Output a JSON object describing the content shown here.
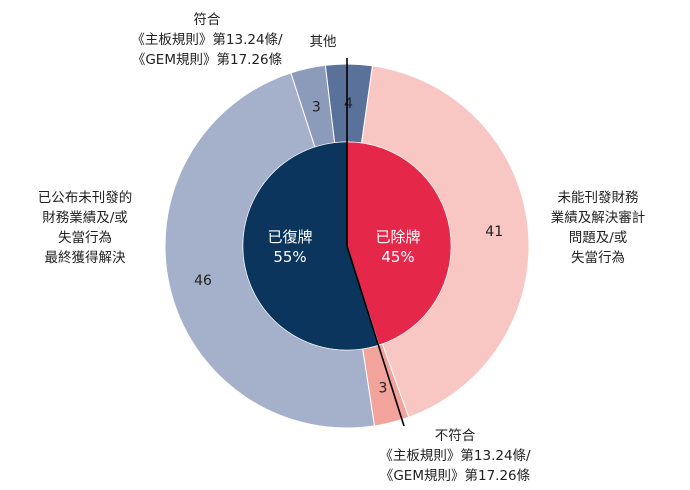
{
  "chart_data": {
    "type": "pie",
    "inner_ring": {
      "slices": [
        {
          "label": "已除牌",
          "value": 45,
          "percent_text": "45%",
          "color": "#E5284A"
        },
        {
          "label": "已復牌",
          "value": 55,
          "percent_text": "55%",
          "color": "#0B355C"
        }
      ]
    },
    "outer_ring": {
      "slices": [
        {
          "label_lines": [
            "未能刊發財務",
            "業績及解決審計",
            "問題及/或",
            "失當行為"
          ],
          "value": 41,
          "value_text": "41",
          "color": "#F8C7C3"
        },
        {
          "label_lines": [
            "不符合",
            "《主板規則》第13.24條/",
            "《GEM規則》第17.26條"
          ],
          "value": 3,
          "value_text": "3",
          "color": "#F2A39B"
        },
        {
          "label_lines": [
            "已公布未刊發的",
            "財務業績及/或",
            "失當行為",
            "最終獲得解決"
          ],
          "value": 46,
          "value_text": "46",
          "color": "#A5B1CB"
        },
        {
          "label_lines": [
            "符合",
            "《主板規則》第13.24條/",
            "《GEM規則》第17.26條"
          ],
          "value": 3,
          "value_text": "3",
          "color": "#8B9BB9"
        },
        {
          "label_lines": [
            "其他"
          ],
          "value": 4,
          "value_text": "4",
          "color": "#5A7199"
        }
      ]
    }
  }
}
